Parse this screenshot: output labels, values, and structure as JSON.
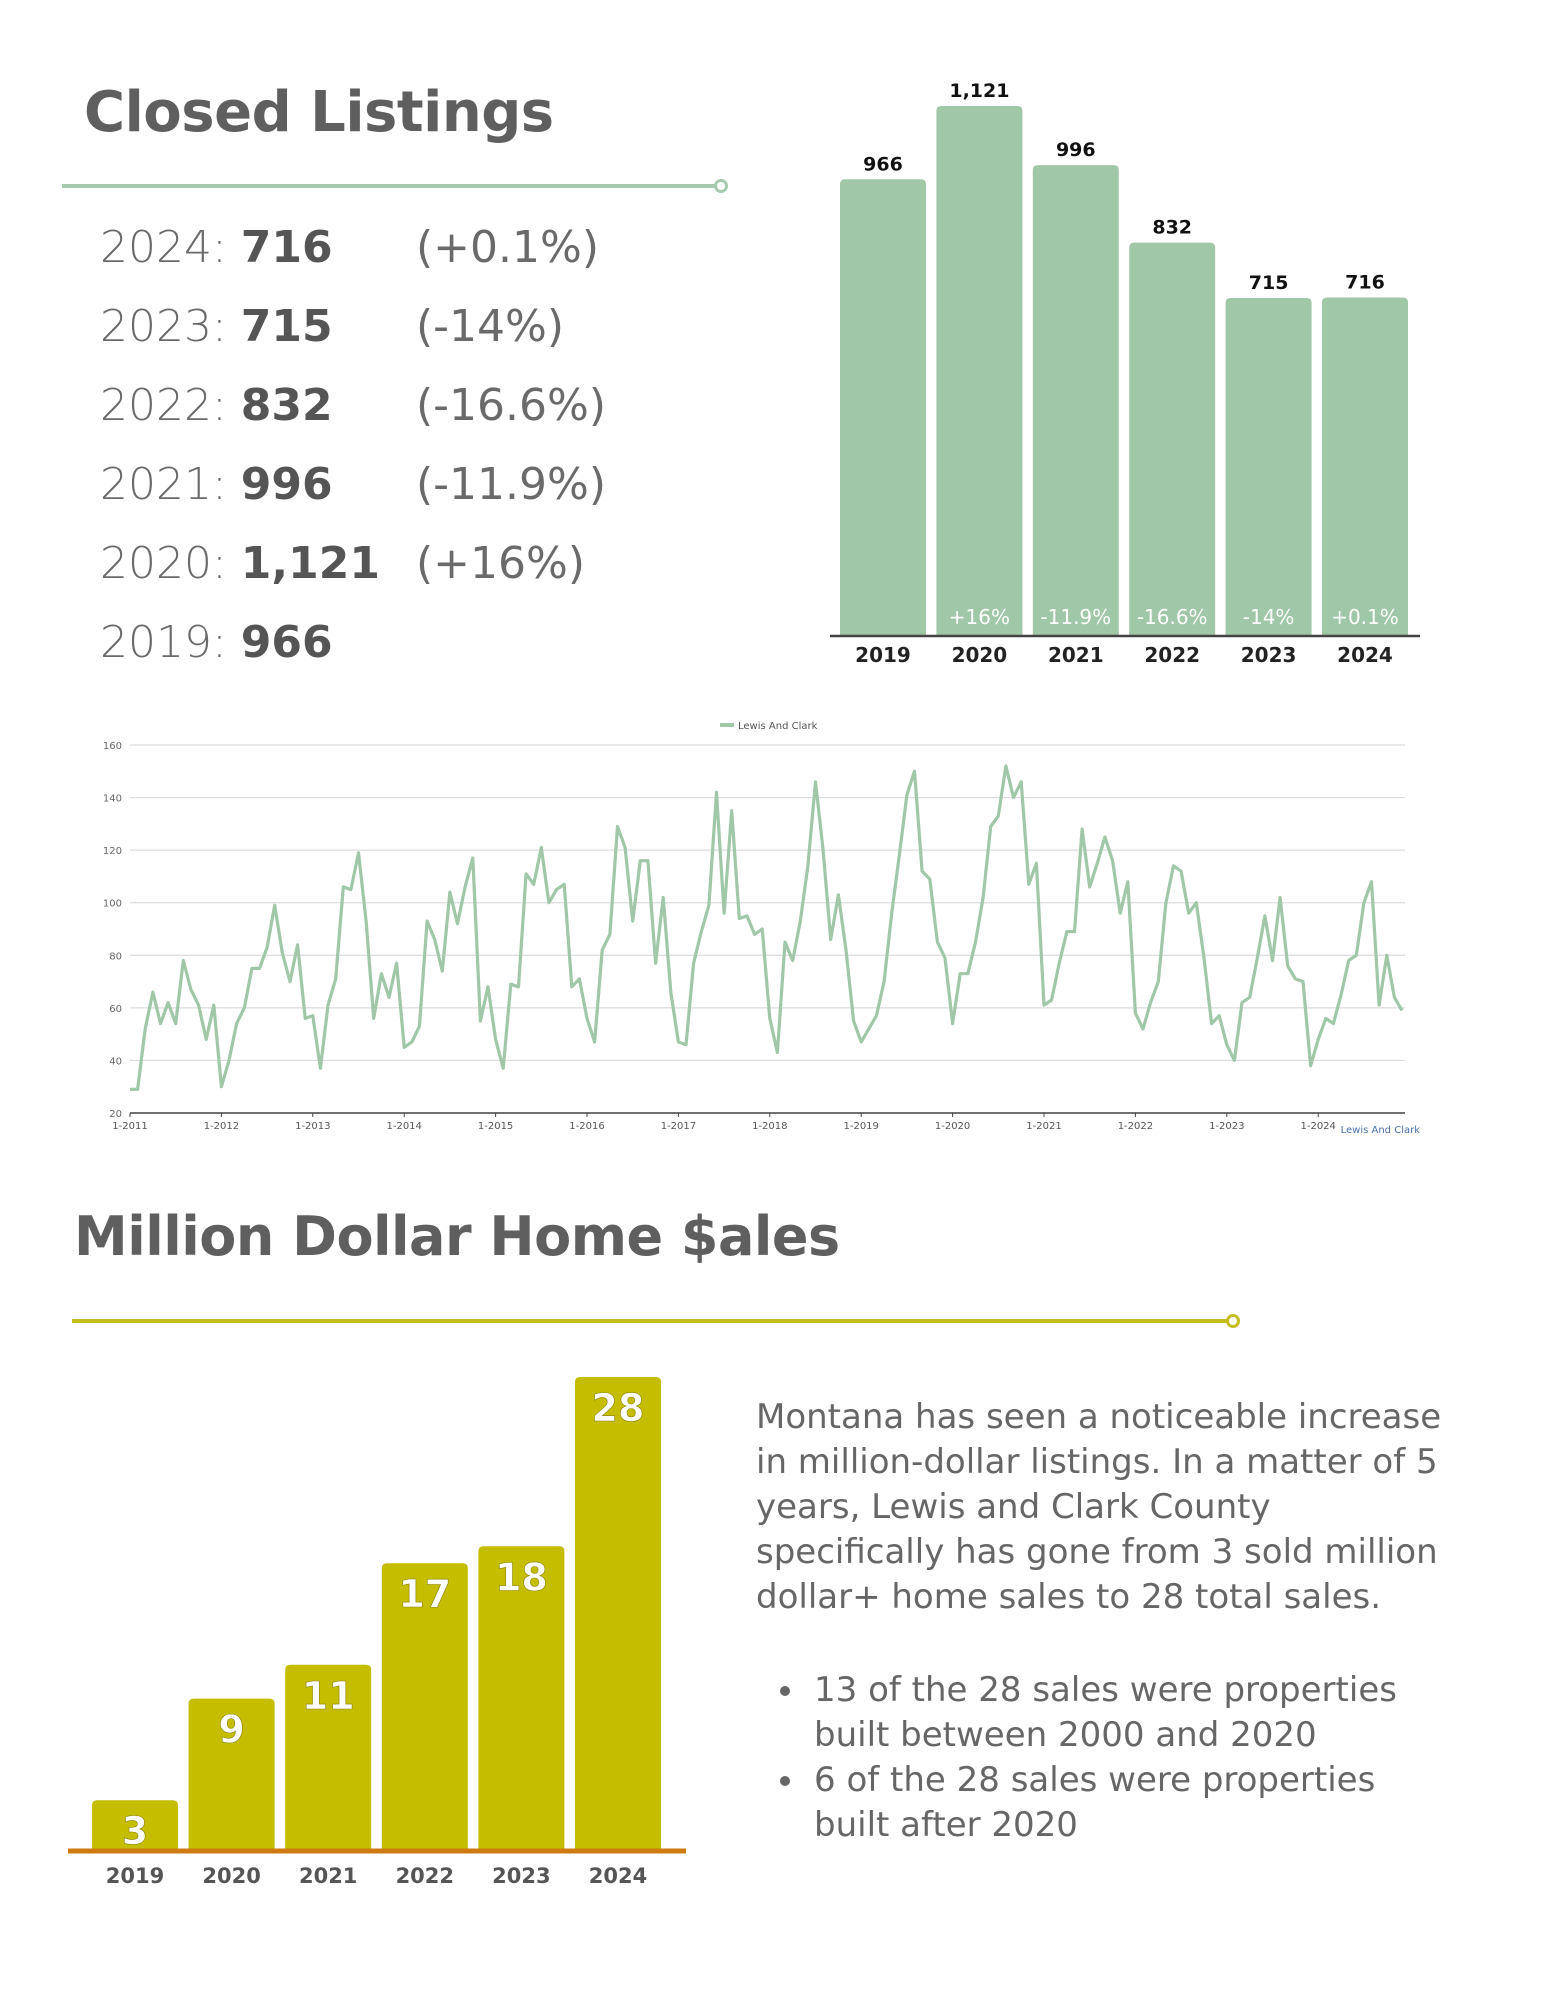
{
  "closed_listings": {
    "title": "Closed Listings",
    "stats": [
      {
        "year": "2024:",
        "value": "716",
        "change": "(+0.1%)"
      },
      {
        "year": "2023:",
        "value": "715",
        "change": "(-14%)"
      },
      {
        "year": "2022:",
        "value": "832",
        "change": "(-16.6%)"
      },
      {
        "year": "2021:",
        "value": "996",
        "change": "(-11.9%)"
      },
      {
        "year": "2020:",
        "value": "1,121",
        "change": "(+16%)"
      },
      {
        "year": "2019:",
        "value": "966",
        "change": ""
      }
    ]
  },
  "million_dollar": {
    "title": "Million Dollar Home $ales",
    "paragraph": "Montana has seen a noticeable increase in million-dollar listings. In a matter of 5 years, Lewis and Clark County specifically has gone from 3 sold million dollar+ home sales to 28 total sales.",
    "bullets": [
      "13 of the 28 sales were properties built between 2000 and 2020",
      "6 of the 28 sales were properties built after 2020"
    ]
  },
  "colors": {
    "green": "#9fc7a8",
    "green_rule": "#a6cbaf",
    "olive": "#c5bd00",
    "orange_axis": "#d07a12",
    "gray_text": "#5f5f5f"
  },
  "chart_data": [
    {
      "type": "bar",
      "categories": [
        "2019",
        "2020",
        "2021",
        "2022",
        "2023",
        "2024"
      ],
      "values": [
        966,
        1121,
        996,
        832,
        715,
        716
      ],
      "data_labels": [
        "966",
        "1,121",
        "996",
        "832",
        "715",
        "716"
      ],
      "change_labels": [
        "",
        "+16%",
        "-11.9%",
        "-16.6%",
        "-14%",
        "+0.1%"
      ],
      "ylim": [
        0,
        1121
      ]
    },
    {
      "type": "line",
      "legend": "Lewis And Clark",
      "legend_position": "top-center",
      "corner_label": "Lewis And Clark",
      "ylim": [
        20,
        160
      ],
      "yticks": [
        20,
        40,
        60,
        80,
        100,
        120,
        140,
        160
      ],
      "xticks": [
        "1-2011",
        "1-2012",
        "1-2013",
        "1-2014",
        "1-2015",
        "1-2016",
        "1-2017",
        "1-2018",
        "1-2019",
        "1-2020",
        "1-2021",
        "1-2022",
        "1-2023",
        "1-2024"
      ],
      "grid": true,
      "series": [
        {
          "name": "Lewis And Clark",
          "start": "1-2011",
          "values": [
            29,
            29,
            52,
            66,
            54,
            62,
            54,
            78,
            67,
            61,
            48,
            61,
            30,
            40,
            54,
            60,
            75,
            75,
            83,
            99,
            81,
            70,
            84,
            56,
            57,
            37,
            61,
            71,
            106,
            105,
            119,
            93,
            56,
            73,
            64,
            77,
            45,
            47,
            53,
            93,
            86,
            74,
            104,
            92,
            106,
            117,
            55,
            68,
            48,
            37,
            69,
            68,
            111,
            107,
            121,
            100,
            105,
            107,
            68,
            71,
            56,
            47,
            82,
            88,
            129,
            121,
            93,
            116,
            116,
            77,
            102,
            66,
            47,
            46,
            77,
            89,
            99,
            142,
            96,
            135,
            94,
            95,
            88,
            90,
            56,
            43,
            85,
            78,
            93,
            114,
            146,
            120,
            86,
            103,
            82,
            55,
            47,
            52,
            57,
            70,
            96,
            118,
            141,
            150,
            112,
            109,
            85,
            79,
            54,
            73,
            73,
            85,
            102,
            129,
            133,
            152,
            140,
            146,
            107,
            115,
            61,
            63,
            77,
            89,
            89,
            128,
            106,
            115,
            125,
            116,
            96,
            108,
            58,
            52,
            62,
            70,
            100,
            114,
            112,
            96,
            100,
            79,
            54,
            57,
            46,
            40,
            62,
            64,
            79,
            95,
            78,
            102,
            76,
            71,
            70,
            38,
            48,
            56,
            54,
            65,
            78,
            80,
            100,
            108,
            61,
            80,
            64,
            59
          ]
        }
      ]
    },
    {
      "type": "bar",
      "categories": [
        "2019",
        "2020",
        "2021",
        "2022",
        "2023",
        "2024"
      ],
      "values": [
        3,
        9,
        11,
        17,
        18,
        28
      ],
      "data_labels": [
        "3",
        "9",
        "11",
        "17",
        "18",
        "28"
      ],
      "ylim": [
        0,
        28
      ]
    }
  ]
}
